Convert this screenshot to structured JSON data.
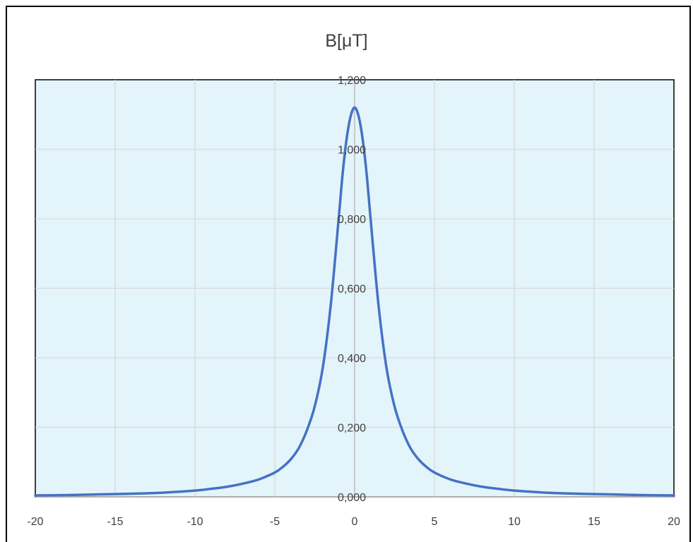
{
  "chart_data": {
    "type": "line",
    "title": "B[μT]",
    "xlabel": "",
    "ylabel": "",
    "xlim": [
      -20,
      20
    ],
    "ylim": [
      0,
      1.2
    ],
    "x_ticks": [
      "-20",
      "-15",
      "-10",
      "-5",
      "0",
      "5",
      "10",
      "15",
      "20"
    ],
    "y_ticks": [
      "0,000",
      "0,200",
      "0,400",
      "0,600",
      "0,800",
      "1,000",
      "1,200"
    ],
    "grid": true,
    "legend": "none",
    "series": [
      {
        "color": "#4472C4",
        "x": [
          -20,
          -18,
          -16,
          -14,
          -12,
          -10,
          -9,
          -8,
          -7,
          -6,
          -5,
          -4.5,
          -4,
          -3.5,
          -3,
          -2.5,
          -2,
          -1.5,
          -1,
          -0.75,
          -0.5,
          -0.25,
          0,
          0.25,
          0.5,
          0.75,
          1,
          1.5,
          2,
          2.5,
          3,
          3.5,
          4,
          4.5,
          5,
          6,
          7,
          8,
          9,
          10,
          12,
          14,
          16,
          18,
          20
        ],
        "y": [
          0.004,
          0.005,
          0.007,
          0.009,
          0.012,
          0.018,
          0.023,
          0.029,
          0.038,
          0.05,
          0.07,
          0.086,
          0.108,
          0.14,
          0.19,
          0.26,
          0.37,
          0.55,
          0.8,
          0.93,
          1.03,
          1.095,
          1.12,
          1.095,
          1.03,
          0.93,
          0.8,
          0.55,
          0.37,
          0.26,
          0.19,
          0.14,
          0.108,
          0.086,
          0.07,
          0.05,
          0.038,
          0.029,
          0.023,
          0.018,
          0.012,
          0.009,
          0.007,
          0.005,
          0.004
        ]
      }
    ],
    "colors": {
      "plot_background": "#E3F4FA",
      "gridline": "#D9D9D9",
      "line": "#4472C4",
      "text": "#404040"
    }
  }
}
